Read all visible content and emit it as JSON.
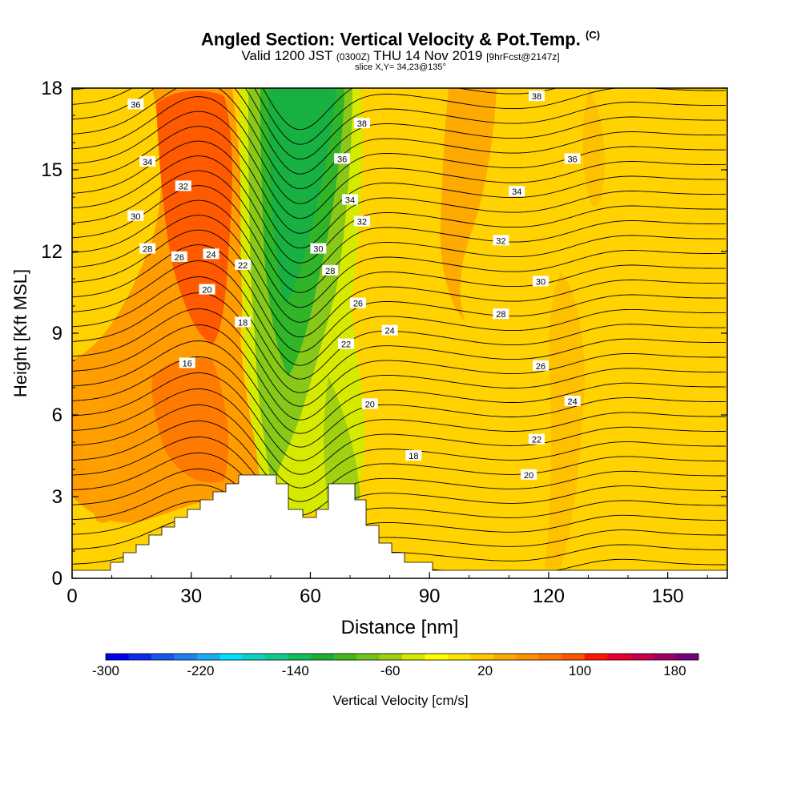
{
  "header": {
    "title": "Angled Section: Vertical Velocity & Pot.Temp.",
    "title_unit": "(C)",
    "valid_prefix": "Valid 1200 JST",
    "valid_utc": "(0300Z)",
    "valid_date": "THU 14 Nov 2019",
    "forecast": "[9hrFcst@2147z]",
    "slice": "slice X,Y= 34,23@135°"
  },
  "chart_data": {
    "type": "heatmap",
    "xlabel": "Distance [nm]",
    "ylabel": "Height [Kft MSL]",
    "xlim": [
      0,
      165
    ],
    "ylim": [
      0,
      18
    ],
    "x_ticks": [
      0,
      30,
      60,
      90,
      120,
      150
    ],
    "y_ticks": [
      0,
      3,
      6,
      9,
      12,
      15,
      18
    ],
    "colorbar": {
      "label": "Vertical Velocity [cm/s]",
      "min": -300,
      "max": 200,
      "step": 20,
      "tick_labels": [
        -300,
        -220,
        -140,
        -60,
        20,
        100,
        180
      ],
      "colors": [
        "#0000ee",
        "#0a2aee",
        "#1456f0",
        "#1e7ff2",
        "#18aaf6",
        "#00e0ff",
        "#10d0c0",
        "#12c890",
        "#10be5a",
        "#18b030",
        "#40b818",
        "#72c418",
        "#a0d010",
        "#d6ea00",
        "#ffff00",
        "#ffe400",
        "#ffc800",
        "#ffaa00",
        "#ff9000",
        "#ff7400",
        "#ff5400",
        "#ff1800",
        "#e6002a",
        "#c8004a",
        "#a00064",
        "#780078"
      ]
    },
    "theta_contour_labels": [
      {
        "value": 36,
        "x": 16,
        "y": 17.4
      },
      {
        "value": 34,
        "x": 19,
        "y": 15.3
      },
      {
        "value": 32,
        "x": 28,
        "y": 14.4
      },
      {
        "value": 30,
        "x": 16,
        "y": 13.3
      },
      {
        "value": 28,
        "x": 19,
        "y": 12.1
      },
      {
        "value": 26,
        "x": 27,
        "y": 11.8
      },
      {
        "value": 24,
        "x": 35,
        "y": 11.9
      },
      {
        "value": 22,
        "x": 43,
        "y": 11.5
      },
      {
        "value": 20,
        "x": 34,
        "y": 10.6
      },
      {
        "value": 18,
        "x": 43,
        "y": 9.4
      },
      {
        "value": 16,
        "x": 29,
        "y": 7.9
      },
      {
        "value": 38,
        "x": 73,
        "y": 16.7
      },
      {
        "value": 36,
        "x": 68,
        "y": 15.4
      },
      {
        "value": 34,
        "x": 70,
        "y": 13.9
      },
      {
        "value": 32,
        "x": 73,
        "y": 13.1
      },
      {
        "value": 30,
        "x": 62,
        "y": 12.1
      },
      {
        "value": 28,
        "x": 65,
        "y": 11.3
      },
      {
        "value": 26,
        "x": 72,
        "y": 10.1
      },
      {
        "value": 24,
        "x": 80,
        "y": 9.1
      },
      {
        "value": 22,
        "x": 69,
        "y": 8.6
      },
      {
        "value": 20,
        "x": 75,
        "y": 6.4
      },
      {
        "value": 18,
        "x": 86,
        "y": 4.5
      },
      {
        "value": 38,
        "x": 117,
        "y": 17.7
      },
      {
        "value": 36,
        "x": 126,
        "y": 15.4
      },
      {
        "value": 34,
        "x": 112,
        "y": 14.2
      },
      {
        "value": 32,
        "x": 108,
        "y": 12.4
      },
      {
        "value": 30,
        "x": 118,
        "y": 10.9
      },
      {
        "value": 28,
        "x": 108,
        "y": 9.7
      },
      {
        "value": 26,
        "x": 118,
        "y": 7.8
      },
      {
        "value": 24,
        "x": 126,
        "y": 6.5
      },
      {
        "value": 22,
        "x": 117,
        "y": 5.1
      },
      {
        "value": 20,
        "x": 115,
        "y": 3.8
      }
    ]
  }
}
